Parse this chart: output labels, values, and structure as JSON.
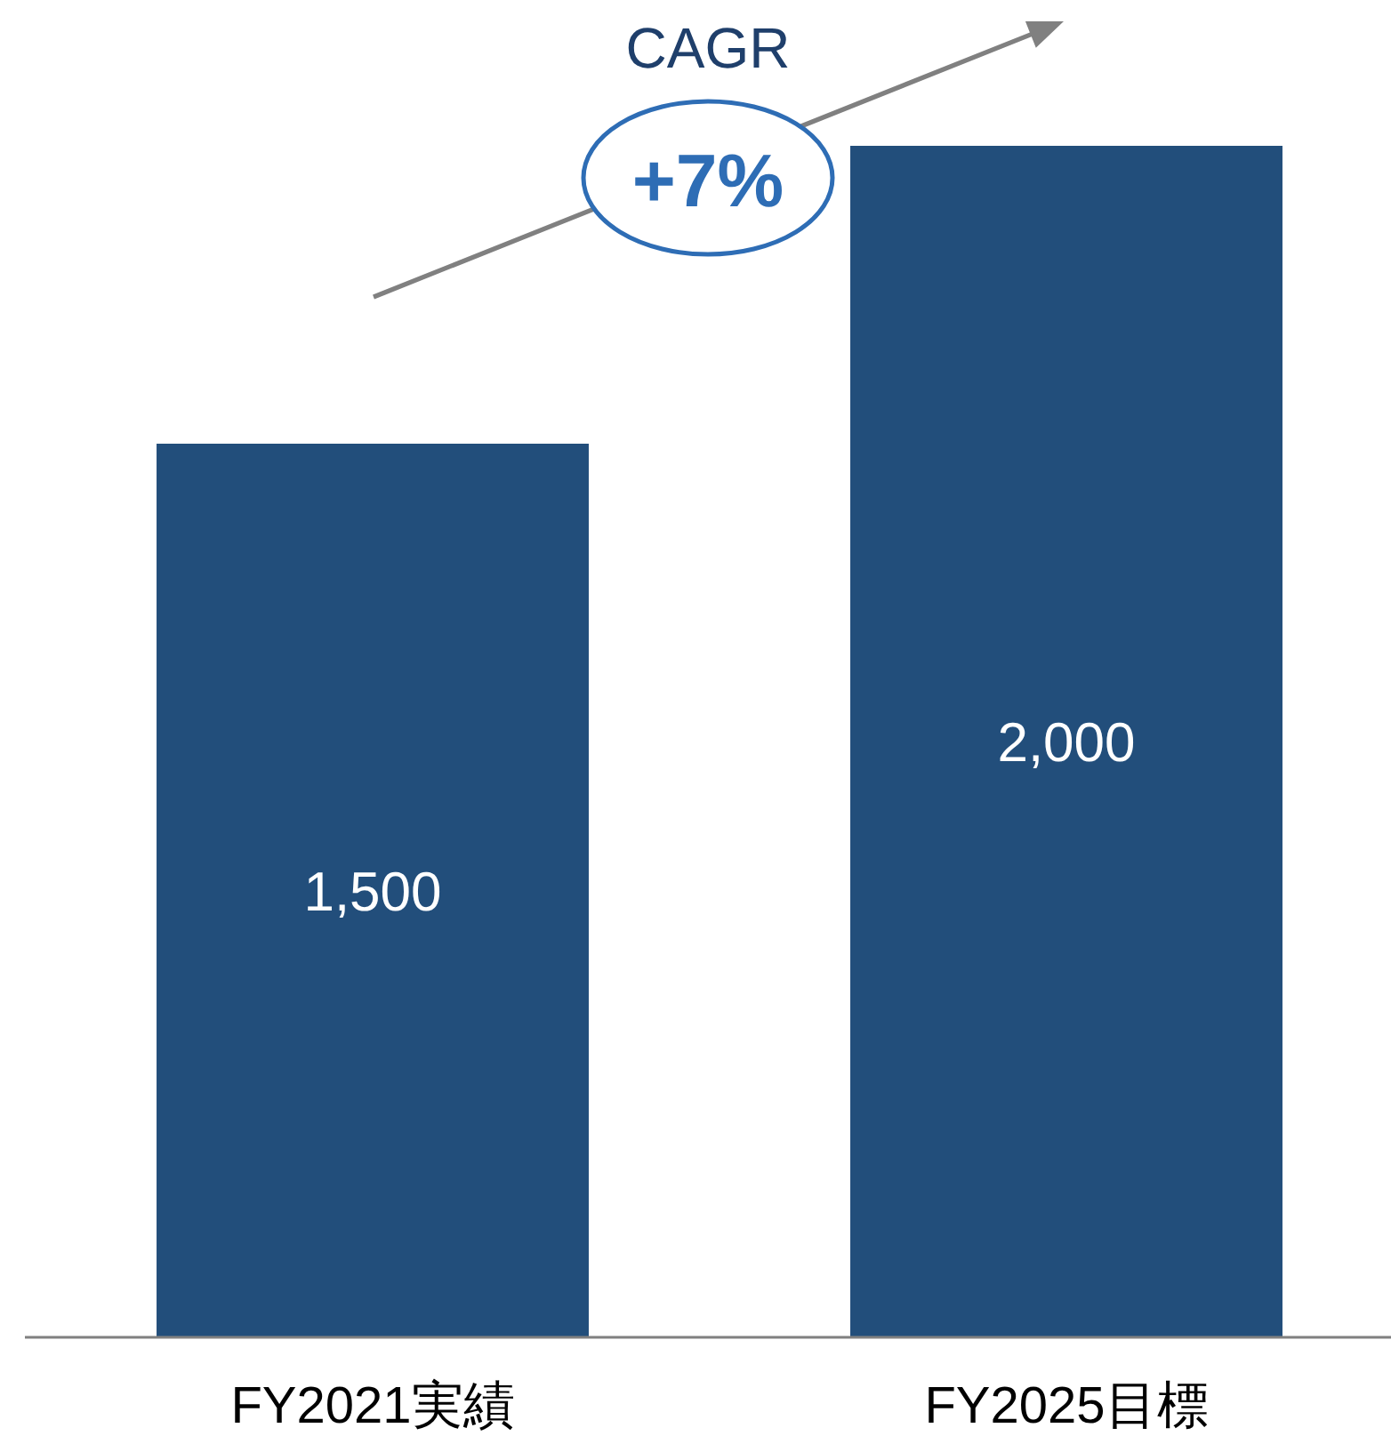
{
  "chart_data": {
    "type": "bar",
    "categories": [
      "FY2021実績",
      "FY2025目標"
    ],
    "values": [
      1500,
      2000
    ],
    "value_labels": [
      "1,500",
      "2,000"
    ],
    "color": "#224e7b",
    "annotations": [
      "CAGR",
      "+7%"
    ]
  }
}
